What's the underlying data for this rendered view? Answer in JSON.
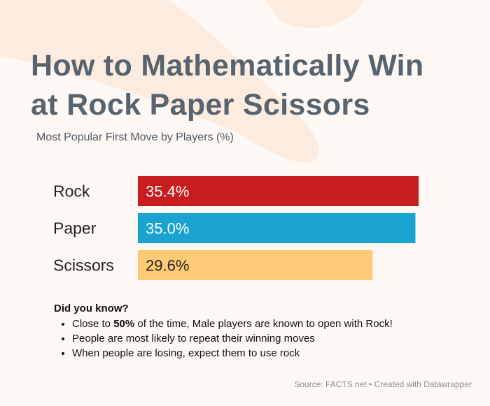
{
  "title_line1": "How to Mathematically Win",
  "title_line2": "at Rock Paper Scissors",
  "subtitle": "Most Popular First Move by Players (%)",
  "chart_data": {
    "type": "bar",
    "orientation": "horizontal",
    "categories": [
      "Rock",
      "Paper",
      "Scissors"
    ],
    "values": [
      35.4,
      35.0,
      29.6
    ],
    "labels": [
      "35.4%",
      "35.0%",
      "29.6%"
    ],
    "colors": [
      "#c91c1f",
      "#1aa3d1",
      "#ffca75"
    ],
    "title": "How to Mathematically Win at Rock Paper Scissors",
    "subtitle": "Most Popular First Move by Players (%)",
    "grid": false
  },
  "notes": {
    "heading": "Did you know?",
    "items": [
      {
        "pre": "Close to ",
        "bold": "50%",
        "post": " of the time, Male players are known to open with Rock!"
      },
      {
        "pre": "People are most likely to repeat their winning moves",
        "bold": "",
        "post": ""
      },
      {
        "pre": "When people are losing, expect them to use rock",
        "bold": "",
        "post": ""
      }
    ]
  },
  "source": "Source: FACTS.net • Created with Datawrapper"
}
